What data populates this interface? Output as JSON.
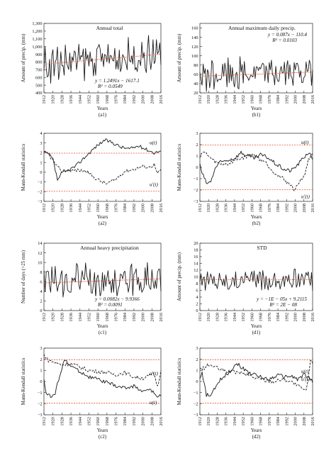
{
  "chart_data": [
    {
      "id": "a1",
      "type": "line",
      "caption": "(a1)",
      "title": "Annual total",
      "xlabel": "Years",
      "ylabel": "Amount of precip. (mm)",
      "xlim": [
        1912,
        2016
      ],
      "ylim": [
        400,
        1300
      ],
      "yticks": [
        400,
        500,
        600,
        700,
        800,
        900,
        1000,
        1100,
        1200,
        1300
      ],
      "ytick_labels": [
        "400",
        "500",
        "600",
        "700",
        "800",
        "900",
        "1,000",
        "1,100",
        "1,200",
        "1,300"
      ],
      "xticks": [
        1912,
        1920,
        1928,
        1936,
        1944,
        1952,
        1960,
        1968,
        1976,
        1984,
        1992,
        2000,
        2008,
        2016
      ],
      "base": 800,
      "amp": 230,
      "phase": 0.3,
      "trend": {
        "slope": 1.2491,
        "intercept": -1617.1,
        "color": "#e8502a"
      },
      "equation": [
        "y = 1.2491x − 1617.1",
        "R² = 0.0549"
      ],
      "series": [
        {
          "values": []
        }
      ]
    },
    {
      "id": "b1",
      "type": "line",
      "caption": "(b1)",
      "title": "Annual maximum daily precip.",
      "xlabel": "Years",
      "ylabel": "Amount of precip. (mm)",
      "xlim": [
        1912,
        2016
      ],
      "ylim": [
        20,
        170
      ],
      "yticks": [
        20,
        40,
        60,
        80,
        100,
        120,
        140,
        160
      ],
      "ytick_labels": [
        "20",
        "40",
        "60",
        "80",
        "100",
        "120",
        "140",
        "160"
      ],
      "xticks": [
        1912,
        1920,
        1928,
        1936,
        1944,
        1952,
        1960,
        1968,
        1976,
        1984,
        1992,
        2000,
        2008,
        2016
      ],
      "base": 60,
      "amp": 35,
      "phase": 1.1,
      "trend": {
        "slope": 0.087,
        "intercept": -110.4,
        "color": "#e8502a"
      },
      "equation": [
        "y = 0.087x − 110.4",
        "R² = 0.0103"
      ],
      "series": [
        {
          "values": []
        }
      ]
    },
    {
      "id": "a2",
      "type": "line",
      "caption": "(a2)",
      "title": "",
      "xlabel": "Years",
      "ylabel": "Mann-Kendall statistics",
      "xlim": [
        1912,
        2016
      ],
      "ylim": [
        -3,
        4
      ],
      "yticks": [
        -3,
        -2,
        -1,
        0,
        1,
        2,
        3,
        4
      ],
      "ytick_labels": [
        "−3",
        "−2",
        "−1",
        "0",
        "1",
        "2",
        "3",
        "4"
      ],
      "xticks": [
        1912,
        1920,
        1928,
        1936,
        1944,
        1952,
        1960,
        1968,
        1976,
        1984,
        1992,
        2000,
        2008,
        2016
      ],
      "ref_lines": [
        1.96,
        -1.96
      ],
      "curve_labels": [
        "u(t)",
        "u′(t)"
      ],
      "series": [
        {
          "style": "solid",
          "kx": [
            1912,
            1916,
            1920,
            1924,
            1928,
            1932,
            1940,
            1948,
            1956,
            1960,
            1966,
            1972,
            1980,
            1988,
            1996,
            2004,
            2010,
            2016
          ],
          "ky": [
            2.0,
            1.9,
            1.3,
            -0.8,
            -0.1,
            0.1,
            0.6,
            1.5,
            2.4,
            2.8,
            3.3,
            3.1,
            2.6,
            2.4,
            2.7,
            2.3,
            2.0,
            2.2
          ]
        },
        {
          "style": "dashed",
          "kx": [
            1912,
            1915,
            1920,
            1924,
            1928,
            1934,
            1942,
            1950,
            1956,
            1962,
            1968,
            1976,
            1984,
            1992,
            2000,
            2006,
            2010,
            2013,
            2016
          ],
          "ky": [
            2.0,
            2.0,
            1.2,
            0.5,
            0.1,
            0.2,
            0.2,
            0.1,
            -0.5,
            -0.9,
            -1.2,
            -0.7,
            0.1,
            0.3,
            0.6,
            0.5,
            0.8,
            -0.2,
            0.3
          ]
        }
      ]
    },
    {
      "id": "b2",
      "type": "line",
      "caption": "(b2)",
      "title": "",
      "xlabel": "Years",
      "ylabel": "Mann-Kendall statistics",
      "xlim": [
        1912,
        2016
      ],
      "ylim": [
        -3,
        3
      ],
      "yticks": [
        -3,
        -2,
        -1,
        0,
        1,
        2,
        3
      ],
      "ytick_labels": [
        "−3",
        "−2",
        "−1",
        "0",
        "1",
        "2",
        "3"
      ],
      "xticks": [
        1912,
        1920,
        1928,
        1936,
        1944,
        1952,
        1960,
        1968,
        1976,
        1984,
        1992,
        2000,
        2008,
        2016
      ],
      "ref_lines": [
        1.96,
        -1.96
      ],
      "curve_labels": [
        "u(t)",
        "u′(t)"
      ],
      "series": [
        {
          "style": "solid",
          "kx": [
            1912,
            1914,
            1918,
            1922,
            1926,
            1930,
            1936,
            1944,
            1950,
            1956,
            1962,
            1968,
            1974,
            1982,
            1990,
            1996,
            2002,
            2008,
            2012,
            2016
          ],
          "ky": [
            0.2,
            -0.5,
            -1.4,
            -1.3,
            -0.1,
            0.4,
            0.6,
            0.8,
            1.3,
            1.0,
            0.8,
            1.1,
            0.9,
            0.3,
            -0.2,
            -0.3,
            0.2,
            0.9,
            1.3,
            0.8
          ]
        },
        {
          "style": "dashed",
          "kx": [
            1912,
            1914,
            1918,
            1924,
            1930,
            1938,
            1946,
            1954,
            1960,
            1966,
            1972,
            1978,
            1984,
            1990,
            1996,
            2000,
            2004,
            2008,
            2012,
            2016
          ],
          "ky": [
            1.0,
            1.3,
            1.2,
            0.6,
            0.3,
            0.3,
            0.7,
            0.9,
            1.2,
            0.8,
            0.5,
            -0.2,
            -0.7,
            -1.1,
            -1.6,
            -2.0,
            -1.2,
            -0.8,
            0.6,
            1.3
          ]
        }
      ]
    },
    {
      "id": "c1",
      "type": "line",
      "caption": "(c1)",
      "title": "Annual heavy precipitation",
      "xlabel": "Years",
      "ylabel": "Number of days (>25 mm)",
      "xlim": [
        1912,
        2016
      ],
      "ylim": [
        0,
        14
      ],
      "yticks": [
        0,
        2,
        4,
        6,
        8,
        10,
        12,
        14
      ],
      "ytick_labels": [
        "0",
        "2",
        "4",
        "6",
        "8",
        "10",
        "12",
        "14"
      ],
      "xticks": [
        1912,
        1920,
        1928,
        1936,
        1944,
        1952,
        1960,
        1968,
        1976,
        1984,
        1992,
        2000,
        2008,
        2016
      ],
      "base": 6,
      "amp": 3.6,
      "phase": 2.0,
      "trend": {
        "slope": 0.0082,
        "intercept": -9.9366,
        "color": "#e8502a"
      },
      "equation": [
        "y = 0.0082x − 9.9366",
        "R² = 0.0091"
      ],
      "series": [
        {
          "values": []
        }
      ]
    },
    {
      "id": "d1",
      "type": "line",
      "caption": "(d1)",
      "title": "STD",
      "xlabel": "Years",
      "ylabel": "Amount of precip. (mm)",
      "xlim": [
        1912,
        2016
      ],
      "ylim": [
        0,
        20
      ],
      "yticks": [
        0,
        2,
        4,
        6,
        8,
        10,
        12,
        14,
        16,
        18,
        20
      ],
      "ytick_labels": [
        "0",
        "2",
        "4",
        "6",
        "8",
        "10",
        "12",
        "14",
        "16",
        "18",
        "20"
      ],
      "xticks": [
        1912,
        1920,
        1928,
        1936,
        1944,
        1952,
        1960,
        1968,
        1976,
        1984,
        1992,
        2000,
        2008,
        2016
      ],
      "base": 9.2,
      "amp": 3.2,
      "phase": 3.3,
      "trend": {
        "slope": -1e-05,
        "intercept": 9.2115,
        "color": "#e8502a"
      },
      "equation": [
        "y = −1E − 05x + 9.2115",
        "R² = 2E − 08"
      ],
      "series": [
        {
          "values": []
        }
      ]
    },
    {
      "id": "c2",
      "type": "line",
      "caption": "(c2)",
      "title": "",
      "xlabel": "Years",
      "ylabel": "Mann-Kendall statistics",
      "xlim": [
        1912,
        2016
      ],
      "ylim": [
        -3,
        3
      ],
      "yticks": [
        -3,
        -2,
        -1,
        0,
        1,
        2,
        3
      ],
      "ytick_labels": [
        "−3",
        "−2",
        "−1",
        "0",
        "1",
        "2",
        "3"
      ],
      "xticks": [
        1912,
        1920,
        1928,
        1936,
        1944,
        1952,
        1960,
        1968,
        1976,
        1984,
        1992,
        2000,
        2008,
        2016
      ],
      "ref_lines": [
        1.96,
        -1.96
      ],
      "curve_labels": [
        "u′(t)",
        "u(t)"
      ],
      "series": [
        {
          "style": "solid",
          "kx": [
            1912,
            1914,
            1918,
            1922,
            1926,
            1930,
            1936,
            1944,
            1952,
            1960,
            1968,
            1976,
            1984,
            1992,
            2000,
            2006,
            2010,
            2014,
            2016
          ],
          "ky": [
            0.2,
            -1.0,
            -1.4,
            -1.1,
            0.6,
            1.9,
            1.4,
            0.9,
            0.4,
            0.2,
            -0.1,
            -0.4,
            -0.6,
            -0.4,
            -0.9,
            -0.7,
            -1.1,
            -1.4,
            -1.3
          ]
        },
        {
          "style": "dashed",
          "kx": [
            1912,
            1916,
            1922,
            1928,
            1936,
            1944,
            1952,
            1960,
            1968,
            1976,
            1984,
            1992,
            2000,
            2006,
            2010,
            2013,
            2016
          ],
          "ky": [
            2.4,
            1.9,
            1.7,
            1.5,
            1.6,
            1.3,
            1.0,
            0.9,
            0.8,
            0.6,
            0.8,
            0.4,
            0.3,
            0.5,
            0.7,
            -0.5,
            1.0
          ]
        }
      ]
    },
    {
      "id": "d2",
      "type": "line",
      "caption": "(d2)",
      "title": "",
      "xlabel": "Years",
      "ylabel": "Mann-Kendall statistics",
      "xlim": [
        1912,
        2016
      ],
      "ylim": [
        -3,
        3
      ],
      "yticks": [
        -3,
        -2,
        -1,
        0,
        1,
        2,
        3
      ],
      "ytick_labels": [
        "−3",
        "−2",
        "−1",
        "0",
        "1",
        "2",
        "3"
      ],
      "xticks": [
        1912,
        1920,
        1928,
        1936,
        1944,
        1952,
        1960,
        1968,
        1976,
        1984,
        1992,
        2000,
        2008,
        2016
      ],
      "ref_lines": [
        1.96,
        -1.96
      ],
      "curve_labels": [
        "u(t)",
        "u′(t)"
      ],
      "series": [
        {
          "style": "solid",
          "kx": [
            1912,
            1914,
            1918,
            1922,
            1926,
            1932,
            1940,
            1946,
            1950,
            1954,
            1960,
            1968,
            1976,
            1984,
            1990,
            1996,
            2002,
            2008,
            2012,
            2016
          ],
          "ky": [
            0.2,
            0.7,
            -1.2,
            -1.3,
            -0.6,
            0.3,
            0.9,
            1.7,
            1.3,
            1.0,
            0.7,
            0.4,
            0.2,
            0.6,
            0.4,
            0.5,
            0.2,
            0.6,
            0.4,
            0.0
          ]
        },
        {
          "style": "dashed",
          "kx": [
            1912,
            1916,
            1920,
            1926,
            1932,
            1940,
            1948,
            1956,
            1964,
            1972,
            1980,
            1988,
            1996,
            2002,
            2006,
            2010,
            2012,
            2014,
            2016
          ],
          "ky": [
            1.1,
            1.2,
            1.5,
            1.3,
            1.0,
            0.9,
            0.8,
            0.6,
            0.3,
            0.1,
            0.0,
            0.2,
            0.0,
            -0.4,
            -0.6,
            -0.9,
            0.4,
            1.8,
            1.7
          ]
        }
      ]
    }
  ]
}
